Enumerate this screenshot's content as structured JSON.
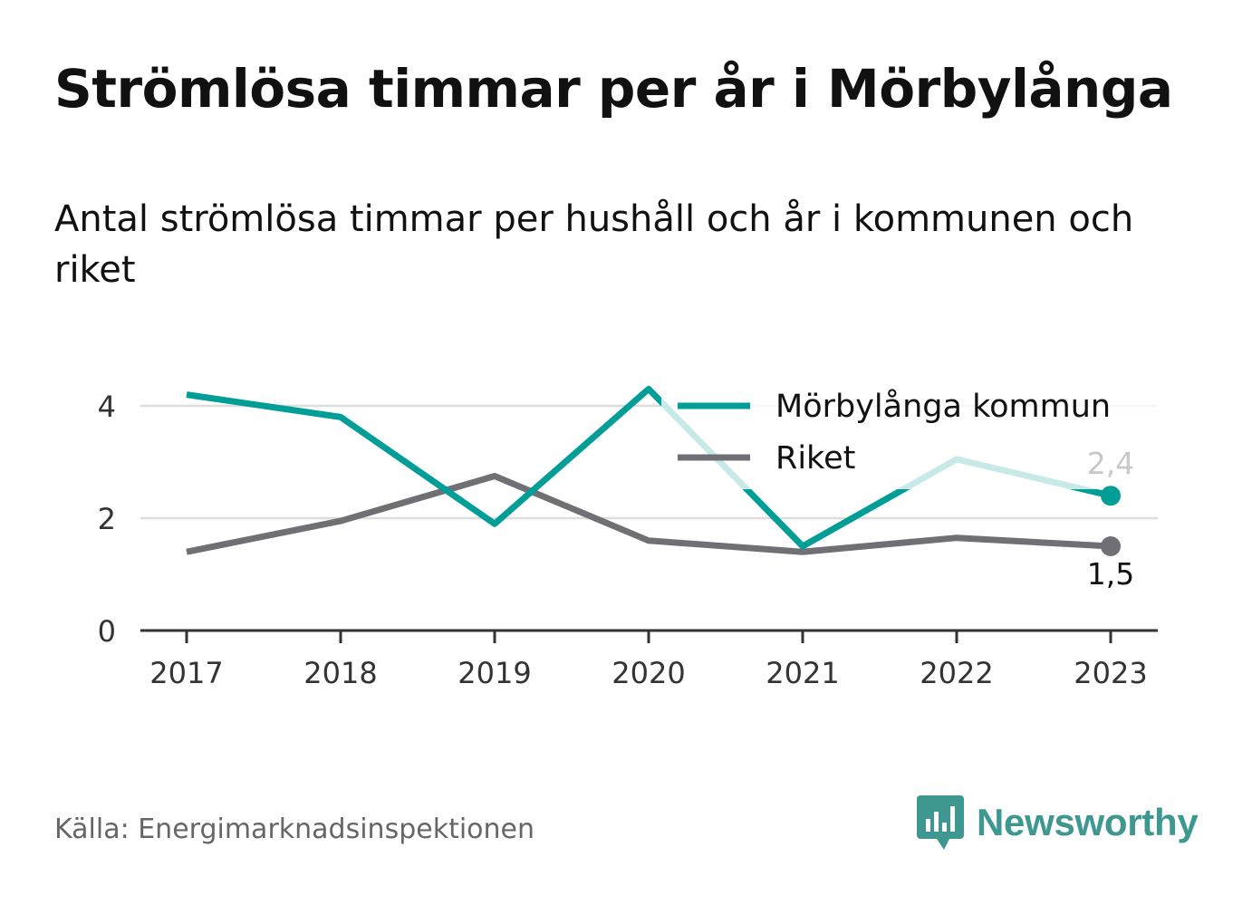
{
  "title": "Strömlösa timmar per år i Mörbylånga",
  "subtitle": "Antal strömlösa timmar per hushåll och år i kommunen och riket",
  "source": "Källa: Energimarknadsinspektionen",
  "brand": {
    "name": "Newsworthy",
    "icon": "newsworthy-logo-icon"
  },
  "colors": {
    "kommun": "#009e96",
    "riket": "#706f76",
    "grid": "#dddddd",
    "axis": "#333333"
  },
  "chart_data": {
    "type": "line",
    "x": [
      "2017",
      "2018",
      "2019",
      "2020",
      "2021",
      "2022",
      "2023"
    ],
    "y_ticks": [
      "0",
      "2",
      "4"
    ],
    "ylim": [
      0,
      4.5
    ],
    "grid": true,
    "legend_position": "top-right",
    "series": [
      {
        "name": "Mörbylånga kommun",
        "values": [
          4.2,
          3.8,
          1.9,
          4.3,
          1.5,
          3.05,
          2.4
        ],
        "end_label": "2,4",
        "color": "#009e96"
      },
      {
        "name": "Riket",
        "values": [
          1.4,
          1.95,
          2.75,
          1.6,
          1.4,
          1.65,
          1.5
        ],
        "end_label": "1,5",
        "color": "#706f76"
      }
    ]
  }
}
